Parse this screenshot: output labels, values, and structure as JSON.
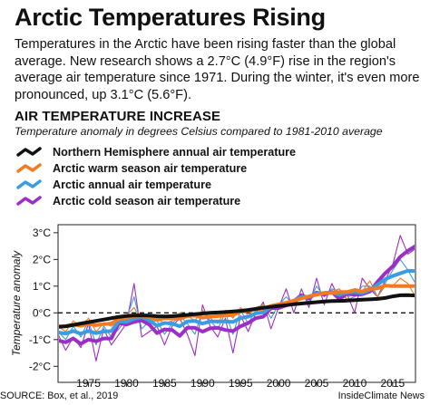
{
  "header": {
    "title": "Arctic Temperatures Rising",
    "intro": "Temperatures in the Arctic have been rising faster than the global average. New research shows a 2.7°C (4.9°F) rise in the region's average air temperature since 1971. During the winter, it's even more pronounced, up 3.1°C (5.6°F)."
  },
  "chart_data": {
    "type": "line",
    "title": "AIR TEMPERATURE INCREASE",
    "subtitle": "Temperature anomaly in degrees Celsius compared to 1981-2010 average",
    "ylabel": "Temperature anomaly",
    "xlabel": "",
    "xlim": [
      1971,
      2018
    ],
    "ylim": [
      -2.6,
      3.3
    ],
    "xticks": [
      1975,
      1980,
      1985,
      1990,
      1995,
      2000,
      2005,
      2010,
      2015
    ],
    "yticks": [
      3,
      2,
      1,
      0,
      -1,
      -2
    ],
    "ytick_labels": [
      "3°C",
      "2°C",
      "1°C",
      "0°C",
      "-1°C",
      "-2°C"
    ],
    "reference_line": {
      "y": 0,
      "style": "dashed"
    },
    "grid": false,
    "legend_position": "top-left",
    "series": [
      {
        "name": "Arctic cold season air temperature",
        "color": "#9b2fc5",
        "style": "thin annual values with thick smoothed trend",
        "x": [
          1971,
          1972,
          1973,
          1974,
          1975,
          1976,
          1977,
          1978,
          1979,
          1980,
          1981,
          1982,
          1983,
          1984,
          1985,
          1986,
          1987,
          1988,
          1989,
          1990,
          1991,
          1992,
          1993,
          1994,
          1995,
          1996,
          1997,
          1998,
          1999,
          2000,
          2001,
          2002,
          2003,
          2004,
          2005,
          2006,
          2007,
          2008,
          2009,
          2010,
          2011,
          2012,
          2013,
          2014,
          2015,
          2016,
          2017,
          2018
        ],
        "y": [
          -0.8,
          -1.4,
          -0.9,
          -1.3,
          -0.4,
          -1.8,
          -0.6,
          -1.2,
          -0.8,
          -0.4,
          1.1,
          -0.9,
          -0.7,
          -0.5,
          -1.2,
          -0.5,
          -0.2,
          -0.8,
          -1.6,
          0.3,
          -0.5,
          -0.9,
          -0.2,
          -1.5,
          -0.1,
          -0.7,
          0.0,
          0.4,
          -0.6,
          0.2,
          0.9,
          0.0,
          0.9,
          0.2,
          1.3,
          0.3,
          1.1,
          0.5,
          0.7,
          0.0,
          1.3,
          0.9,
          0.6,
          1.2,
          1.8,
          2.9,
          2.2,
          2.4
        ]
      },
      {
        "name": "Arctic annual air temperature",
        "color": "#3a9de0",
        "style": "thin annual values with thick smoothed trend",
        "x": [
          1971,
          1972,
          1973,
          1974,
          1975,
          1976,
          1977,
          1978,
          1979,
          1980,
          1981,
          1982,
          1983,
          1984,
          1985,
          1986,
          1987,
          1988,
          1989,
          1990,
          1991,
          1992,
          1993,
          1994,
          1995,
          1996,
          1997,
          1998,
          1999,
          2000,
          2001,
          2002,
          2003,
          2004,
          2005,
          2006,
          2007,
          2008,
          2009,
          2010,
          2011,
          2012,
          2013,
          2014,
          2015,
          2016,
          2017,
          2018
        ],
        "y": [
          -0.7,
          -1.0,
          -0.5,
          -0.9,
          -0.3,
          -1.2,
          -0.5,
          -0.9,
          -0.6,
          -0.2,
          0.6,
          -0.6,
          -0.3,
          -0.3,
          -0.8,
          -0.4,
          -0.1,
          -0.4,
          -0.8,
          0.1,
          -0.3,
          -0.6,
          0.0,
          -0.8,
          0.1,
          -0.4,
          0.1,
          0.3,
          -0.2,
          0.3,
          0.6,
          0.3,
          0.7,
          0.4,
          1.0,
          0.6,
          0.9,
          0.8,
          0.5,
          0.6,
          1.0,
          1.0,
          0.6,
          1.1,
          1.6,
          2.0,
          1.6,
          1.1
        ]
      },
      {
        "name": "Arctic warm season air temperature",
        "color": "#f47a20",
        "style": "thin annual values with thick smoothed trend",
        "x": [
          1971,
          1972,
          1973,
          1974,
          1975,
          1976,
          1977,
          1978,
          1979,
          1980,
          1981,
          1982,
          1983,
          1984,
          1985,
          1986,
          1987,
          1988,
          1989,
          1990,
          1991,
          1992,
          1993,
          1994,
          1995,
          1996,
          1997,
          1998,
          1999,
          2000,
          2001,
          2002,
          2003,
          2004,
          2005,
          2006,
          2007,
          2008,
          2009,
          2010,
          2011,
          2012,
          2013,
          2014,
          2015,
          2016,
          2017,
          2018
        ],
        "y": [
          -0.5,
          -0.7,
          -0.3,
          -0.5,
          -0.2,
          -0.7,
          -0.4,
          -0.5,
          -0.3,
          -0.1,
          0.2,
          -0.3,
          -0.1,
          -0.2,
          -0.4,
          -0.3,
          0.0,
          -0.1,
          -0.3,
          0.1,
          -0.2,
          -0.4,
          0.1,
          -0.2,
          0.2,
          -0.1,
          0.2,
          0.3,
          0.1,
          0.3,
          0.4,
          0.5,
          0.6,
          0.5,
          0.7,
          0.8,
          0.8,
          0.9,
          0.5,
          0.9,
          0.8,
          1.2,
          0.6,
          1.0,
          1.0,
          1.3,
          1.1,
          0.6
        ]
      },
      {
        "name": "Northern Hemisphere annual air temperature",
        "color": "#111111",
        "style": "thick smoothed line",
        "x": [
          1971,
          1972,
          1973,
          1974,
          1975,
          1976,
          1977,
          1978,
          1979,
          1980,
          1981,
          1982,
          1983,
          1984,
          1985,
          1986,
          1987,
          1988,
          1989,
          1990,
          1991,
          1992,
          1993,
          1994,
          1995,
          1996,
          1997,
          1998,
          1999,
          2000,
          2001,
          2002,
          2003,
          2004,
          2005,
          2006,
          2007,
          2008,
          2009,
          2010,
          2011,
          2012,
          2013,
          2014,
          2015,
          2016,
          2017,
          2018
        ],
        "y": [
          -0.55,
          -0.5,
          -0.45,
          -0.4,
          -0.35,
          -0.3,
          -0.25,
          -0.2,
          -0.15,
          -0.1,
          -0.1,
          -0.08,
          -0.1,
          -0.12,
          -0.15,
          -0.12,
          -0.1,
          -0.08,
          -0.05,
          -0.02,
          0.0,
          0.02,
          0.02,
          0.05,
          0.08,
          0.1,
          0.15,
          0.2,
          0.22,
          0.25,
          0.3,
          0.32,
          0.35,
          0.38,
          0.4,
          0.42,
          0.45,
          0.45,
          0.45,
          0.48,
          0.5,
          0.5,
          0.52,
          0.55,
          0.6,
          0.7,
          0.68,
          0.62
        ]
      }
    ]
  },
  "legend_order": [
    3,
    2,
    1,
    0
  ],
  "footer": {
    "source": "SOURCE: Box, et al., 2019",
    "credit": "InsideClimate News"
  }
}
